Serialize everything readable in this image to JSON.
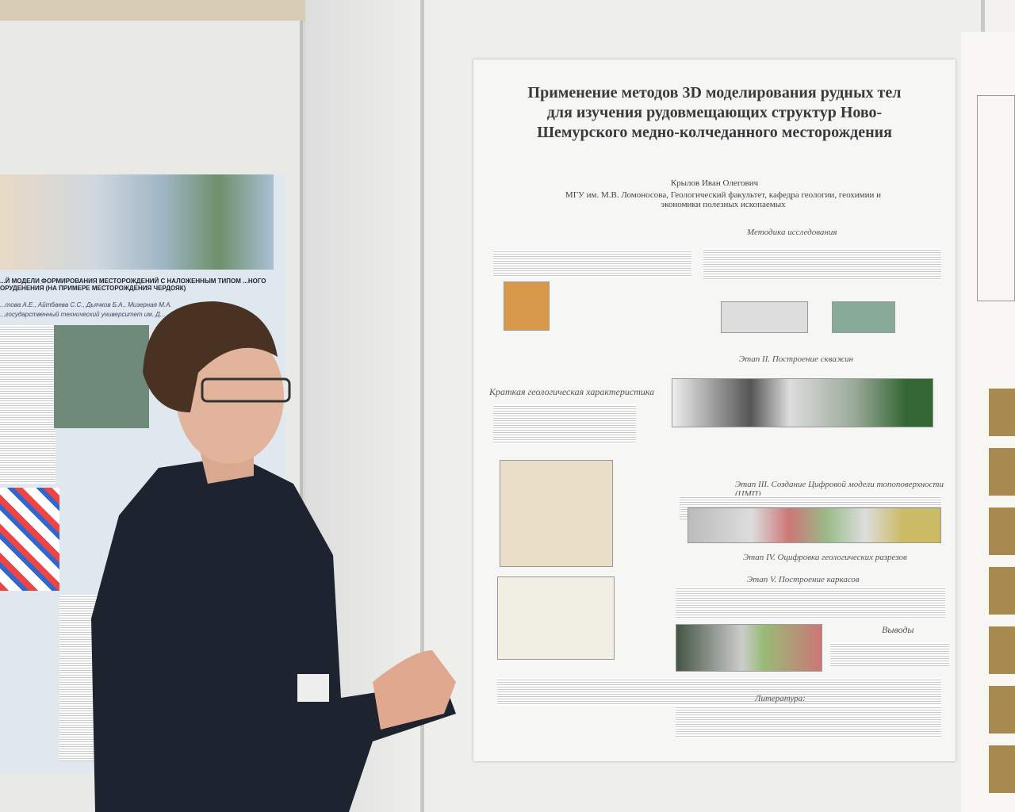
{
  "main_poster": {
    "title": "Применение методов 3D моделирования рудных тел для изучения рудовмещающих структур Ново-Шемурского медно-колчеданного месторождения",
    "author": "Крылов Иван Олегович",
    "affiliation": "МГУ им. М.В. Ломоносова, Геологический факультет, кафедра геологии, геохимии и экономики полезных ископаемых",
    "sections": [
      "Методика исследования",
      "Краткая геологическая характеристика",
      "Этап II. Построение скважин",
      "Этап III. Создание Цифровой модели топоповерхности (ЦМП)",
      "Этап IV. Оцифровка геологических разрезов",
      "Этап V. Построение каркасов",
      "Выводы",
      "Литература:"
    ]
  },
  "left_poster": {
    "title": "...Й МОДЕЛИ ФОРМИРОВАНИЯ МЕСТОРОЖДЕНИЙ С НАЛОЖЕННЫМ ТИПОМ ...НОГО ОРУДЕНЕНИЯ (НА ПРИМЕРЕ МЕСТОРОЖДЕНИЯ ЧЕРДОЯК)",
    "authors": "...това А.Е., Айтбаева С.С., Дьячков Б.А., Мизерная М.А.",
    "affiliation": "...государственный технический университет им. Д..."
  }
}
